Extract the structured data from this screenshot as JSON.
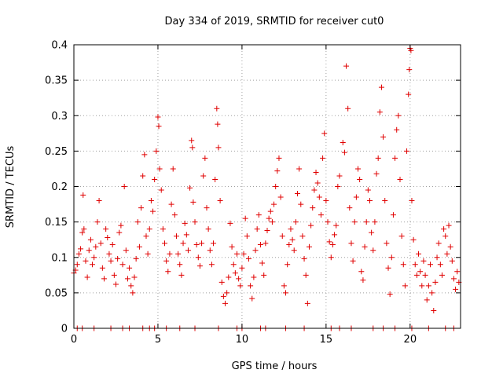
{
  "chart_data": {
    "type": "scatter",
    "title": "Day 334 of 2019, SRMTID for receiver cut0",
    "xlabel": "GPS time / hours",
    "ylabel": "SRMTID / TECUs",
    "xlim": [
      0,
      23
    ],
    "ylim": [
      0,
      0.4
    ],
    "x_ticks": [
      0,
      5,
      10,
      15,
      20
    ],
    "y_ticks": [
      0,
      0.05,
      0.1,
      0.15,
      0.2,
      0.25,
      0.3,
      0.35,
      0.4
    ],
    "x_tick_labels": [
      "0",
      "5",
      "10",
      "15",
      "20"
    ],
    "y_tick_labels": [
      "0",
      "0.05",
      "0.1",
      "0.15",
      "0.2",
      "0.25",
      "0.3",
      "0.35",
      "0.4"
    ],
    "grid": true,
    "marker": "+",
    "color": "#e00000",
    "series": [
      {
        "name": "SRMTID",
        "points": [
          [
            0.0,
            0.078
          ],
          [
            0.1,
            0.082
          ],
          [
            0.2,
            0.09
          ],
          [
            0.3,
            0.105
          ],
          [
            0.4,
            0.112
          ],
          [
            0.5,
            0.135
          ],
          [
            0.55,
            0.188
          ],
          [
            0.6,
            0.14
          ],
          [
            0.7,
            0.095
          ],
          [
            0.8,
            0.072
          ],
          [
            0.9,
            0.11
          ],
          [
            1.0,
            0.125
          ],
          [
            1.1,
            0.09
          ],
          [
            1.2,
            0.1
          ],
          [
            1.3,
            0.115
          ],
          [
            1.4,
            0.15
          ],
          [
            1.5,
            0.18
          ],
          [
            1.6,
            0.12
          ],
          [
            1.7,
            0.085
          ],
          [
            1.8,
            0.07
          ],
          [
            1.9,
            0.14
          ],
          [
            2.0,
            0.128
          ],
          [
            2.1,
            0.105
          ],
          [
            2.2,
            0.095
          ],
          [
            2.3,
            0.118
          ],
          [
            2.4,
            0.075
          ],
          [
            2.5,
            0.062
          ],
          [
            2.6,
            0.098
          ],
          [
            2.7,
            0.135
          ],
          [
            2.8,
            0.145
          ],
          [
            2.9,
            0.09
          ],
          [
            3.0,
            0.2
          ],
          [
            3.1,
            0.11
          ],
          [
            3.2,
            0.07
          ],
          [
            3.3,
            0.085
          ],
          [
            3.4,
            0.06
          ],
          [
            3.5,
            0.05
          ],
          [
            3.6,
            0.072
          ],
          [
            3.7,
            0.098
          ],
          [
            3.8,
            0.15
          ],
          [
            3.9,
            0.115
          ],
          [
            4.0,
            0.17
          ],
          [
            4.1,
            0.215
          ],
          [
            4.2,
            0.245
          ],
          [
            4.3,
            0.13
          ],
          [
            4.4,
            0.105
          ],
          [
            4.5,
            0.14
          ],
          [
            4.6,
            0.18
          ],
          [
            4.7,
            0.165
          ],
          [
            4.8,
            0.21
          ],
          [
            4.9,
            0.25
          ],
          [
            5.0,
            0.298
          ],
          [
            5.05,
            0.285
          ],
          [
            5.1,
            0.225
          ],
          [
            5.2,
            0.195
          ],
          [
            5.3,
            0.14
          ],
          [
            5.4,
            0.12
          ],
          [
            5.5,
            0.095
          ],
          [
            5.6,
            0.08
          ],
          [
            5.7,
            0.105
          ],
          [
            5.8,
            0.175
          ],
          [
            5.9,
            0.225
          ],
          [
            6.0,
            0.16
          ],
          [
            6.1,
            0.13
          ],
          [
            6.2,
            0.105
          ],
          [
            6.3,
            0.09
          ],
          [
            6.4,
            0.075
          ],
          [
            6.5,
            0.12
          ],
          [
            6.6,
            0.148
          ],
          [
            6.7,
            0.132
          ],
          [
            6.8,
            0.11
          ],
          [
            6.9,
            0.198
          ],
          [
            7.0,
            0.265
          ],
          [
            7.05,
            0.255
          ],
          [
            7.1,
            0.178
          ],
          [
            7.2,
            0.15
          ],
          [
            7.3,
            0.118
          ],
          [
            7.4,
            0.1
          ],
          [
            7.5,
            0.088
          ],
          [
            7.6,
            0.12
          ],
          [
            7.7,
            0.215
          ],
          [
            7.8,
            0.24
          ],
          [
            7.9,
            0.17
          ],
          [
            8.0,
            0.14
          ],
          [
            8.1,
            0.11
          ],
          [
            8.2,
            0.09
          ],
          [
            8.3,
            0.12
          ],
          [
            8.4,
            0.21
          ],
          [
            8.5,
            0.31
          ],
          [
            8.55,
            0.288
          ],
          [
            8.6,
            0.255
          ],
          [
            8.7,
            0.18
          ],
          [
            8.8,
            0.065
          ],
          [
            8.9,
            0.045
          ],
          [
            9.0,
            0.035
          ],
          [
            9.1,
            0.05
          ],
          [
            9.2,
            0.072
          ],
          [
            9.3,
            0.148
          ],
          [
            9.4,
            0.115
          ],
          [
            9.5,
            0.09
          ],
          [
            9.6,
            0.078
          ],
          [
            9.7,
            0.105
          ],
          [
            9.8,
            0.07
          ],
          [
            9.9,
            0.06
          ],
          [
            10.0,
            0.085
          ],
          [
            10.1,
            0.105
          ],
          [
            10.2,
            0.155
          ],
          [
            10.3,
            0.13
          ],
          [
            10.4,
            0.098
          ],
          [
            10.5,
            0.06
          ],
          [
            10.6,
            0.042
          ],
          [
            10.7,
            0.072
          ],
          [
            10.8,
            0.11
          ],
          [
            10.9,
            0.14
          ],
          [
            11.0,
            0.16
          ],
          [
            11.1,
            0.118
          ],
          [
            11.2,
            0.092
          ],
          [
            11.3,
            0.075
          ],
          [
            11.4,
            0.12
          ],
          [
            11.5,
            0.138
          ],
          [
            11.6,
            0.155
          ],
          [
            11.7,
            0.165
          ],
          [
            11.8,
            0.15
          ],
          [
            11.9,
            0.175
          ],
          [
            12.0,
            0.2
          ],
          [
            12.1,
            0.222
          ],
          [
            12.2,
            0.24
          ],
          [
            12.3,
            0.185
          ],
          [
            12.4,
            0.13
          ],
          [
            12.5,
            0.06
          ],
          [
            12.6,
            0.05
          ],
          [
            12.7,
            0.09
          ],
          [
            12.8,
            0.118
          ],
          [
            12.9,
            0.14
          ],
          [
            13.0,
            0.125
          ],
          [
            13.1,
            0.11
          ],
          [
            13.2,
            0.15
          ],
          [
            13.3,
            0.19
          ],
          [
            13.4,
            0.225
          ],
          [
            13.5,
            0.175
          ],
          [
            13.6,
            0.13
          ],
          [
            13.7,
            0.098
          ],
          [
            13.8,
            0.075
          ],
          [
            13.9,
            0.035
          ],
          [
            14.0,
            0.115
          ],
          [
            14.1,
            0.145
          ],
          [
            14.2,
            0.17
          ],
          [
            14.3,
            0.195
          ],
          [
            14.4,
            0.22
          ],
          [
            14.5,
            0.205
          ],
          [
            14.6,
            0.185
          ],
          [
            14.7,
            0.16
          ],
          [
            14.8,
            0.24
          ],
          [
            14.9,
            0.275
          ],
          [
            15.0,
            0.18
          ],
          [
            15.1,
            0.15
          ],
          [
            15.2,
            0.122
          ],
          [
            15.3,
            0.1
          ],
          [
            15.4,
            0.118
          ],
          [
            15.5,
            0.132
          ],
          [
            15.6,
            0.145
          ],
          [
            15.7,
            0.2
          ],
          [
            15.8,
            0.215
          ],
          [
            16.0,
            0.262
          ],
          [
            16.1,
            0.248
          ],
          [
            16.2,
            0.37
          ],
          [
            16.3,
            0.31
          ],
          [
            16.4,
            0.17
          ],
          [
            16.5,
            0.12
          ],
          [
            16.6,
            0.095
          ],
          [
            16.7,
            0.15
          ],
          [
            16.8,
            0.185
          ],
          [
            16.9,
            0.225
          ],
          [
            17.0,
            0.21
          ],
          [
            17.1,
            0.08
          ],
          [
            17.2,
            0.068
          ],
          [
            17.3,
            0.115
          ],
          [
            17.4,
            0.15
          ],
          [
            17.5,
            0.195
          ],
          [
            17.6,
            0.18
          ],
          [
            17.7,
            0.135
          ],
          [
            17.8,
            0.11
          ],
          [
            17.9,
            0.15
          ],
          [
            18.0,
            0.218
          ],
          [
            18.1,
            0.24
          ],
          [
            18.2,
            0.305
          ],
          [
            18.3,
            0.34
          ],
          [
            18.4,
            0.27
          ],
          [
            18.5,
            0.18
          ],
          [
            18.6,
            0.12
          ],
          [
            18.7,
            0.085
          ],
          [
            18.8,
            0.048
          ],
          [
            18.9,
            0.1
          ],
          [
            19.0,
            0.16
          ],
          [
            19.1,
            0.24
          ],
          [
            19.2,
            0.28
          ],
          [
            19.3,
            0.3
          ],
          [
            19.4,
            0.21
          ],
          [
            19.5,
            0.13
          ],
          [
            19.6,
            0.09
          ],
          [
            19.7,
            0.06
          ],
          [
            19.8,
            0.25
          ],
          [
            19.9,
            0.33
          ],
          [
            19.95,
            0.365
          ],
          [
            20.0,
            0.395
          ],
          [
            20.05,
            0.392
          ],
          [
            20.1,
            0.18
          ],
          [
            20.2,
            0.125
          ],
          [
            20.3,
            0.09
          ],
          [
            20.4,
            0.075
          ],
          [
            20.5,
            0.105
          ],
          [
            20.6,
            0.08
          ],
          [
            20.7,
            0.06
          ],
          [
            20.8,
            0.095
          ],
          [
            20.9,
            0.075
          ],
          [
            21.0,
            0.04
          ],
          [
            21.1,
            0.06
          ],
          [
            21.2,
            0.09
          ],
          [
            21.3,
            0.05
          ],
          [
            21.4,
            0.025
          ],
          [
            21.5,
            0.065
          ],
          [
            21.6,
            0.1
          ],
          [
            21.7,
            0.12
          ],
          [
            21.8,
            0.09
          ],
          [
            21.9,
            0.075
          ],
          [
            22.0,
            0.14
          ],
          [
            22.1,
            0.13
          ],
          [
            22.2,
            0.105
          ],
          [
            22.3,
            0.145
          ],
          [
            22.4,
            0.115
          ],
          [
            22.5,
            0.095
          ],
          [
            22.6,
            0.07
          ],
          [
            22.7,
            0.055
          ],
          [
            22.8,
            0.08
          ],
          [
            22.9,
            0.065
          ],
          [
            0.2,
            0.0
          ],
          [
            0.5,
            0.0
          ],
          [
            1.2,
            0.0
          ],
          [
            2.2,
            0.0
          ],
          [
            2.9,
            0.0
          ],
          [
            3.3,
            0.0
          ],
          [
            4.1,
            0.0
          ],
          [
            4.5,
            0.0
          ],
          [
            4.8,
            0.0
          ],
          [
            5.5,
            0.0
          ],
          [
            6.3,
            0.0
          ],
          [
            7.2,
            0.0
          ],
          [
            8.6,
            0.0
          ],
          [
            9.7,
            0.0
          ],
          [
            10.0,
            0.0
          ],
          [
            11.1,
            0.0
          ],
          [
            11.4,
            0.0
          ],
          [
            12.6,
            0.0
          ],
          [
            13.7,
            0.0
          ],
          [
            15.3,
            0.0
          ],
          [
            15.8,
            0.0
          ],
          [
            16.5,
            0.0
          ],
          [
            17.8,
            0.0
          ],
          [
            18.4,
            0.0
          ],
          [
            19.1,
            0.0
          ],
          [
            20.1,
            0.0
          ],
          [
            21.1,
            0.0
          ],
          [
            22.1,
            0.0
          ],
          [
            22.6,
            0.0
          ]
        ]
      }
    ]
  }
}
